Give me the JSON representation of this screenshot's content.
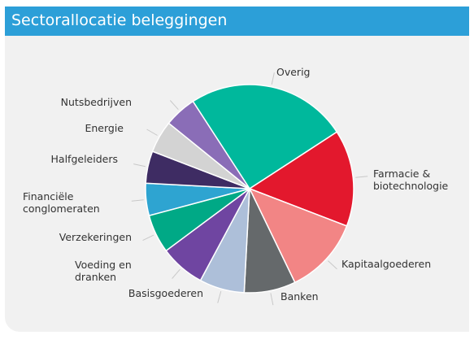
{
  "chart_data": {
    "type": "pie",
    "title": "Sectorallocatie beleggingen",
    "categories": [
      "Overig",
      "Farmacie & biotechnologie",
      "Kapitaalgoederen",
      "Banken",
      "Basisgoederen",
      "Voeding en dranken",
      "Verzekeringen",
      "Financiële conglomeraten",
      "Halfgeleiders",
      "Energie",
      "Nutsbedrijven"
    ],
    "values": [
      25,
      15,
      12,
      8,
      7,
      7,
      6,
      5,
      5,
      5,
      5
    ],
    "colors": [
      "#00b89c",
      "#e3182d",
      "#f28585",
      "#65696b",
      "#adbfd9",
      "#6f45a1",
      "#00a986",
      "#2ea4d1",
      "#3e2c63",
      "#d3d3d3",
      "#8a6db7"
    ]
  }
}
